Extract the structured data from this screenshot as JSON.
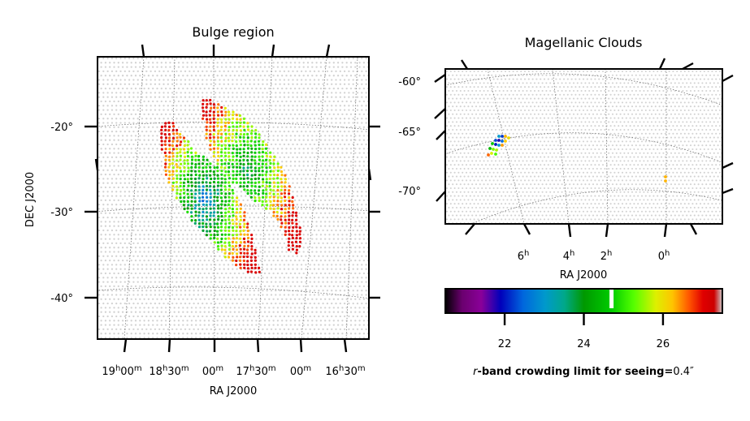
{
  "chart_data": [
    {
      "type": "scatter",
      "name": "bulge-panel",
      "title": "Bulge region",
      "xlabel": "RA J2000",
      "ylabel": "DEC J2000",
      "dec_ticks": [
        "-20°",
        "-30°",
        "-40°"
      ],
      "dec_tick_values": [
        -20,
        -30,
        -40
      ],
      "ra_ticks": [
        {
          "h": "19",
          "m": "00"
        },
        {
          "h": "18",
          "m": "30"
        },
        {
          "h": "",
          "m": "00"
        },
        {
          "h": "17",
          "m": "30"
        },
        {
          "h": "",
          "m": "00"
        },
        {
          "h": "16",
          "m": "30"
        }
      ],
      "ra_tick_values_hours": [
        19.0,
        18.5,
        18.0,
        17.5,
        17.0,
        16.5
      ],
      "dec_range": [
        -45,
        -13
      ],
      "ra_range_hours": [
        16.3,
        19.4
      ],
      "colored_fields": "Galactic bulge fields along two parallel stripes, crowding limit from ~22.5 (core) to ~27 (edges)"
    },
    {
      "type": "scatter",
      "name": "magellanic-panel",
      "title": "Magellanic Clouds",
      "xlabel": "RA J2000",
      "dec_ticks": [
        "-60°",
        "-65°",
        "-70°"
      ],
      "dec_tick_values": [
        -60,
        -65,
        -70
      ],
      "ra_ticks": [
        "6",
        "4",
        "2",
        "0"
      ],
      "ra_tick_values_hours": [
        6,
        4,
        2,
        0
      ],
      "sup_unit": "h",
      "colored_fields": "LMC cluster near RA 5.5h with limits 22–26; two SMC fields near RA 1h at ~26.5"
    },
    {
      "type": "colorbar",
      "name": "crowding-colorbar",
      "ticks": [
        "22",
        "24",
        "26"
      ],
      "tick_values": [
        22,
        24,
        26
      ],
      "range": [
        20.5,
        27.5
      ],
      "marker_value": 24.7,
      "label_em": "r",
      "label_bold": "-band crowding limit for seeing=",
      "label_value": "0.4″",
      "colormap": "nipy_spectral"
    }
  ],
  "colors": {
    "background_points": "#d2d2d2",
    "frame": "#000000",
    "grid": "#666666"
  }
}
